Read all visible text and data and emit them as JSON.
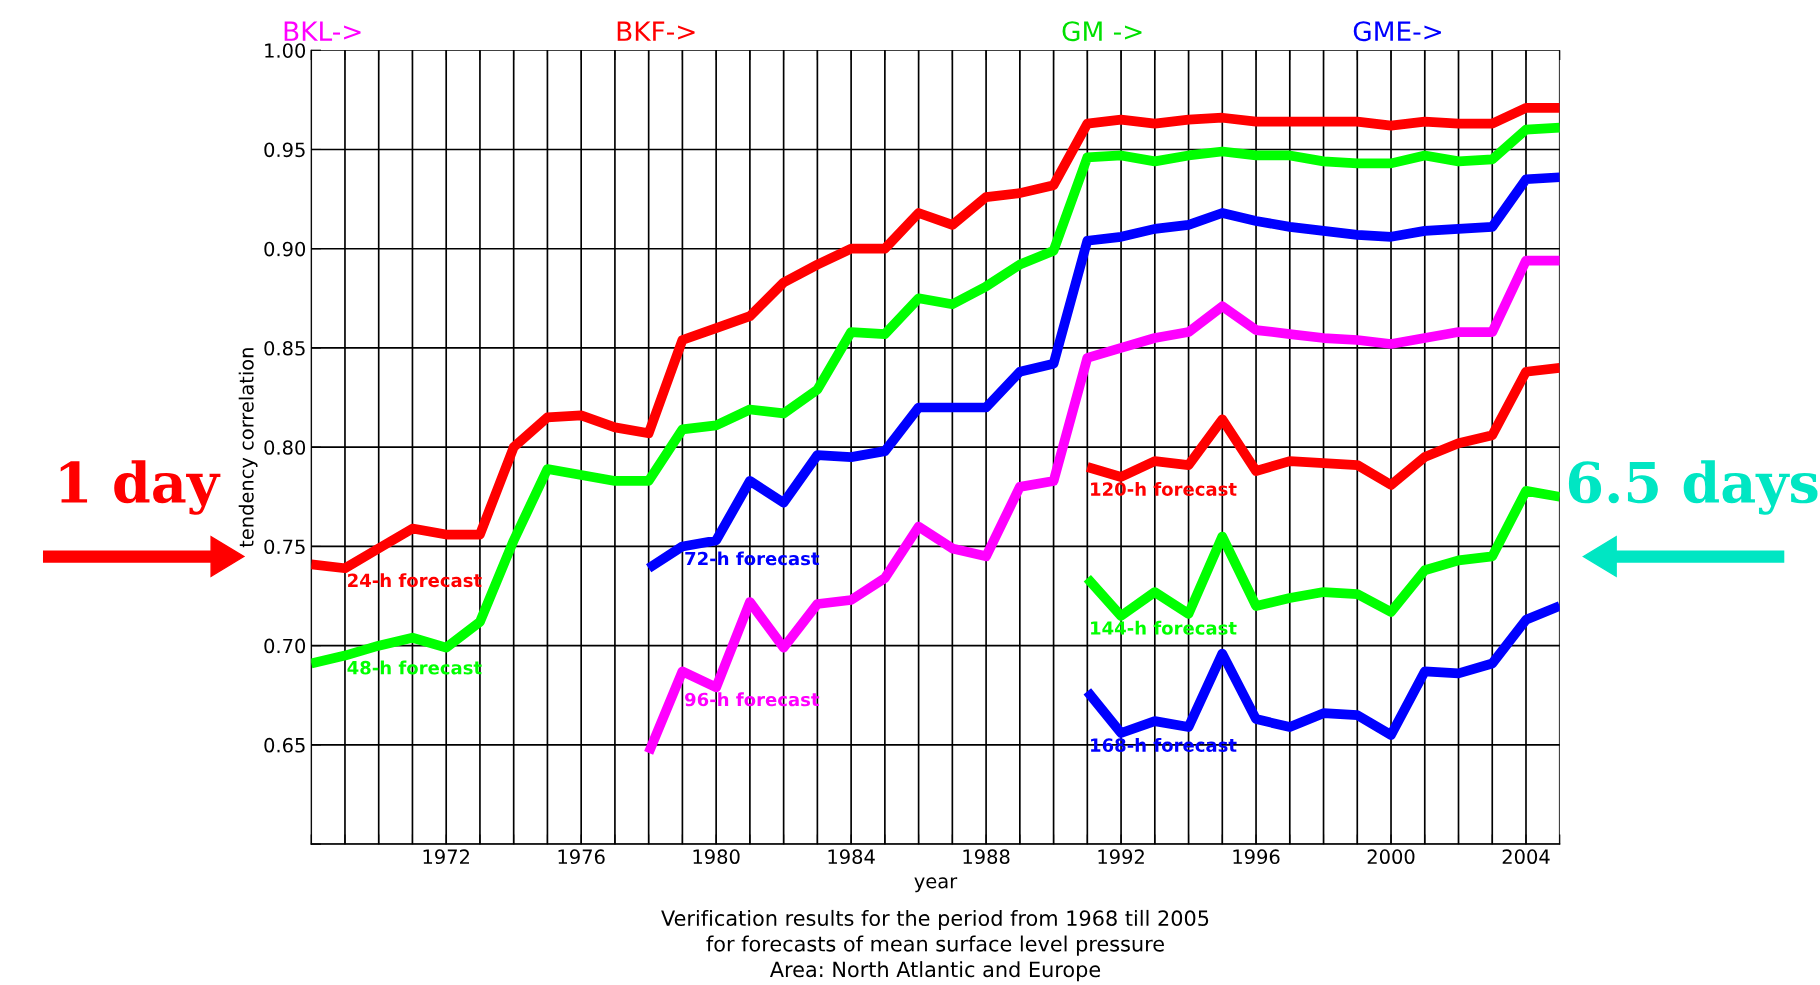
{
  "chart_data": {
    "type": "line",
    "xlabel": "year",
    "ylabel": "tendency correlation",
    "x": [
      1968,
      1969,
      1970,
      1971,
      1972,
      1973,
      1974,
      1975,
      1976,
      1977,
      1978,
      1979,
      1980,
      1981,
      1982,
      1983,
      1984,
      1985,
      1986,
      1987,
      1988,
      1989,
      1990,
      1991,
      1992,
      1993,
      1994,
      1995,
      1996,
      1997,
      1998,
      1999,
      2000,
      2001,
      2002,
      2003,
      2004,
      2005
    ],
    "series": [
      {
        "name": "24-h forecast",
        "color": "#ff0000",
        "values": [
          0.741,
          0.739,
          0.749,
          0.759,
          0.756,
          0.756,
          0.8,
          0.815,
          0.816,
          0.81,
          0.807,
          0.854,
          0.86,
          0.866,
          0.883,
          0.892,
          0.9,
          0.9,
          0.918,
          0.912,
          0.926,
          0.928,
          0.932,
          0.963,
          0.965,
          0.963,
          0.965,
          0.966,
          0.964,
          0.964,
          0.964,
          0.964,
          0.962,
          0.964,
          0.963,
          0.963,
          0.971,
          0.971
        ]
      },
      {
        "name": "48-h forecast",
        "color": "#00ff00",
        "values": [
          0.691,
          0.695,
          0.7,
          0.704,
          0.699,
          0.712,
          0.753,
          0.789,
          0.786,
          0.783,
          0.783,
          0.809,
          0.811,
          0.819,
          0.817,
          0.829,
          0.858,
          0.857,
          0.875,
          0.872,
          0.881,
          0.892,
          0.899,
          0.946,
          0.947,
          0.944,
          0.947,
          0.949,
          0.947,
          0.947,
          0.944,
          0.943,
          0.943,
          0.947,
          0.944,
          0.945,
          0.96,
          0.961
        ]
      },
      {
        "name": "72-h forecast",
        "color": "#0000ff",
        "x": [
          1978,
          1979,
          1980,
          1981,
          1982,
          1983,
          1984,
          1985,
          1986,
          1987,
          1988,
          1989,
          1990,
          1991,
          1992,
          1993,
          1994,
          1995,
          1996,
          1997,
          1998,
          1999,
          2000,
          2001,
          2002,
          2003,
          2004,
          2005
        ],
        "values": [
          0.739,
          0.75,
          0.753,
          0.783,
          0.772,
          0.796,
          0.795,
          0.798,
          0.82,
          0.82,
          0.82,
          0.838,
          0.842,
          0.904,
          0.906,
          0.91,
          0.912,
          0.918,
          0.914,
          0.911,
          0.909,
          0.907,
          0.906,
          0.909,
          0.91,
          0.911,
          0.935,
          0.936
        ]
      },
      {
        "name": "96-h forecast",
        "color": "#ff00ff",
        "x": [
          1978,
          1979,
          1980,
          1981,
          1982,
          1983,
          1984,
          1985,
          1986,
          1987,
          1988,
          1989,
          1990,
          1991,
          1992,
          1993,
          1994,
          1995,
          1996,
          1997,
          1998,
          1999,
          2000,
          2001,
          2002,
          2003,
          2004,
          2005
        ],
        "values": [
          0.646,
          0.687,
          0.679,
          0.722,
          0.699,
          0.721,
          0.723,
          0.734,
          0.76,
          0.749,
          0.745,
          0.78,
          0.783,
          0.845,
          0.85,
          0.855,
          0.858,
          0.871,
          0.859,
          0.857,
          0.855,
          0.854,
          0.852,
          0.855,
          0.858,
          0.858,
          0.894,
          0.894
        ]
      },
      {
        "name": "120-h forecast",
        "color": "#ff0000",
        "x": [
          1991,
          1992,
          1993,
          1994,
          1995,
          1996,
          1997,
          1998,
          1999,
          2000,
          2001,
          2002,
          2003,
          2004,
          2005
        ],
        "values": [
          0.79,
          0.785,
          0.793,
          0.791,
          0.814,
          0.788,
          0.793,
          0.792,
          0.791,
          0.781,
          0.795,
          0.802,
          0.806,
          0.838,
          0.84
        ]
      },
      {
        "name": "144-h forecast",
        "color": "#00ff00",
        "x": [
          1991,
          1992,
          1993,
          1994,
          1995,
          1996,
          1997,
          1998,
          1999,
          2000,
          2001,
          2002,
          2003,
          2004,
          2005
        ],
        "values": [
          0.734,
          0.715,
          0.727,
          0.716,
          0.755,
          0.72,
          0.724,
          0.727,
          0.726,
          0.717,
          0.738,
          0.743,
          0.745,
          0.778,
          0.775
        ]
      },
      {
        "name": "168-h forecast",
        "color": "#0000ff",
        "x": [
          1991,
          1992,
          1993,
          1994,
          1995,
          1996,
          1997,
          1998,
          1999,
          2000,
          2001,
          2002,
          2003,
          2004,
          2005
        ],
        "values": [
          0.677,
          0.656,
          0.662,
          0.659,
          0.696,
          0.663,
          0.659,
          0.666,
          0.665,
          0.655,
          0.687,
          0.686,
          0.691,
          0.713,
          0.72
        ]
      }
    ],
    "xlim": [
      1968,
      2005
    ],
    "xticks": [
      {
        "value": 1968,
        "label": null
      },
      {
        "value": 1969,
        "label": null
      },
      {
        "value": 1970,
        "label": null
      },
      {
        "value": 1971,
        "label": null
      },
      1972,
      {
        "value": 1973,
        "label": null
      },
      {
        "value": 1974,
        "label": null
      },
      {
        "value": 1975,
        "label": null
      },
      1976,
      {
        "value": 1977,
        "label": null
      },
      {
        "value": 1978,
        "label": null
      },
      {
        "value": 1979,
        "label": null
      },
      1980,
      {
        "value": 1981,
        "label": null
      },
      {
        "value": 1982,
        "label": null
      },
      {
        "value": 1983,
        "label": null
      },
      1984,
      {
        "value": 1985,
        "label": null
      },
      {
        "value": 1986,
        "label": null
      },
      {
        "value": 1987,
        "label": null
      },
      1988,
      {
        "value": 1989,
        "label": null
      },
      {
        "value": 1990,
        "label": null
      },
      {
        "value": 1991,
        "label": null
      },
      1992,
      {
        "value": 1993,
        "label": null
      },
      {
        "value": 1994,
        "label": null
      },
      {
        "value": 1995,
        "label": null
      },
      1996,
      {
        "value": 1997,
        "label": null
      },
      {
        "value": 1998,
        "label": null
      },
      {
        "value": 1999,
        "label": null
      },
      2000,
      {
        "value": 2001,
        "label": null
      },
      {
        "value": 2002,
        "label": null
      },
      {
        "value": 2003,
        "label": null
      },
      2004,
      {
        "value": 2005,
        "label": null
      }
    ],
    "ylim": [
      0.6,
      1.0
    ],
    "yticks": [
      {
        "value": 0.6,
        "label": null
      },
      0.65,
      {
        "value": 0.7,
        "label": "0.70"
      },
      0.75,
      {
        "value": 0.8,
        "label": "0.80"
      },
      0.85,
      {
        "value": 0.9,
        "label": "0.90"
      },
      0.95,
      {
        "value": 1.0,
        "label": "1.00"
      }
    ],
    "grid": true,
    "marker": "none",
    "line_style": "solid",
    "legend": false,
    "annotations": [
      "BKL->",
      "BKF->",
      "GM ->",
      "GME->",
      "1 day",
      "6.5 days",
      "Verification results for the period from 1968 till 2005",
      "for forecasts of mean surface level pressure",
      "Area: North Atlantic and Europe"
    ]
  }
}
